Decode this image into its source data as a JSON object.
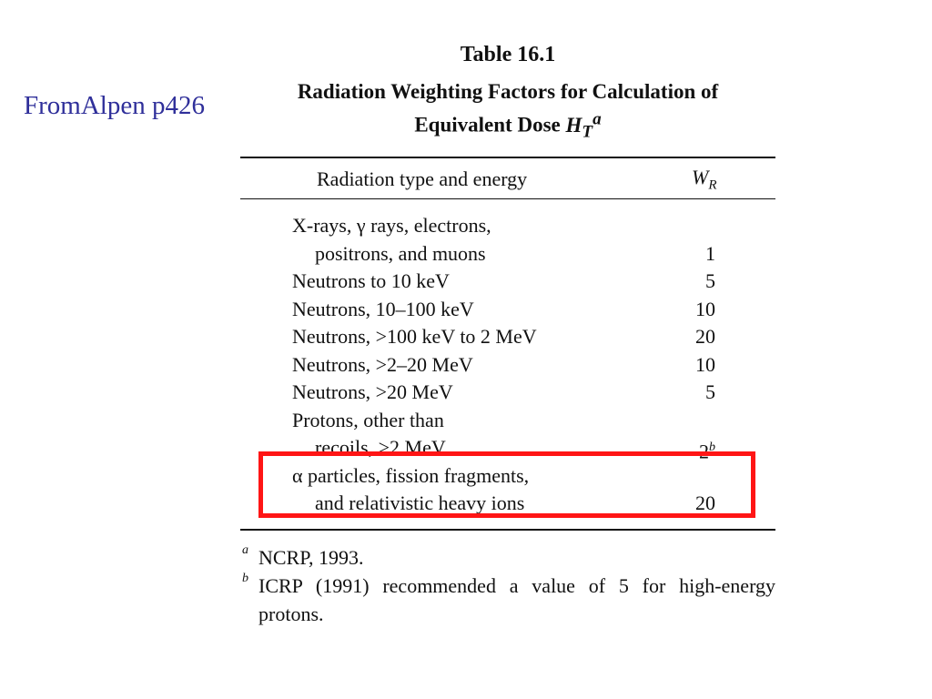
{
  "source_note": "FromAlpen p426",
  "table": {
    "number": "Table 16.1",
    "title_line1": "Radiation Weighting Factors for Calculation of",
    "title_line2_text": "Equivalent Dose",
    "title_symbol": "H",
    "title_symbol_sub": "T",
    "title_symbol_sup": "a",
    "col_type": "Radiation type and energy",
    "col_wr": "W",
    "col_wr_sub": "R",
    "rows": [
      {
        "label": "X-rays, γ rays, electrons,",
        "value": ""
      },
      {
        "label": "positrons, and muons",
        "value": "1",
        "indent": true
      },
      {
        "label": "Neutrons to 10 keV",
        "value": "5"
      },
      {
        "label": "Neutrons, 10–100 keV",
        "value": "10"
      },
      {
        "label": "Neutrons, >100 keV to 2 MeV",
        "value": "20"
      },
      {
        "label": "Neutrons, >2–20 MeV",
        "value": "10"
      },
      {
        "label": "Neutrons, >20 MeV",
        "value": "5"
      },
      {
        "label": "Protons, other than",
        "value": ""
      },
      {
        "label": "recoils, >2 MeV",
        "value": "2",
        "value_sup": "b",
        "indent": true
      },
      {
        "label": "α particles, fission fragments,",
        "value": ""
      },
      {
        "label": "and relativistic heavy ions",
        "value": "20",
        "indent": true
      }
    ],
    "footnotes": [
      {
        "mark": "a",
        "text": "NCRP, 1993."
      },
      {
        "mark": "b",
        "text": "ICRP (1991) recommended a value of 5 for high-energy protons."
      }
    ]
  },
  "highlight_color": "#ff1515",
  "note_color": "#2f2f9a"
}
